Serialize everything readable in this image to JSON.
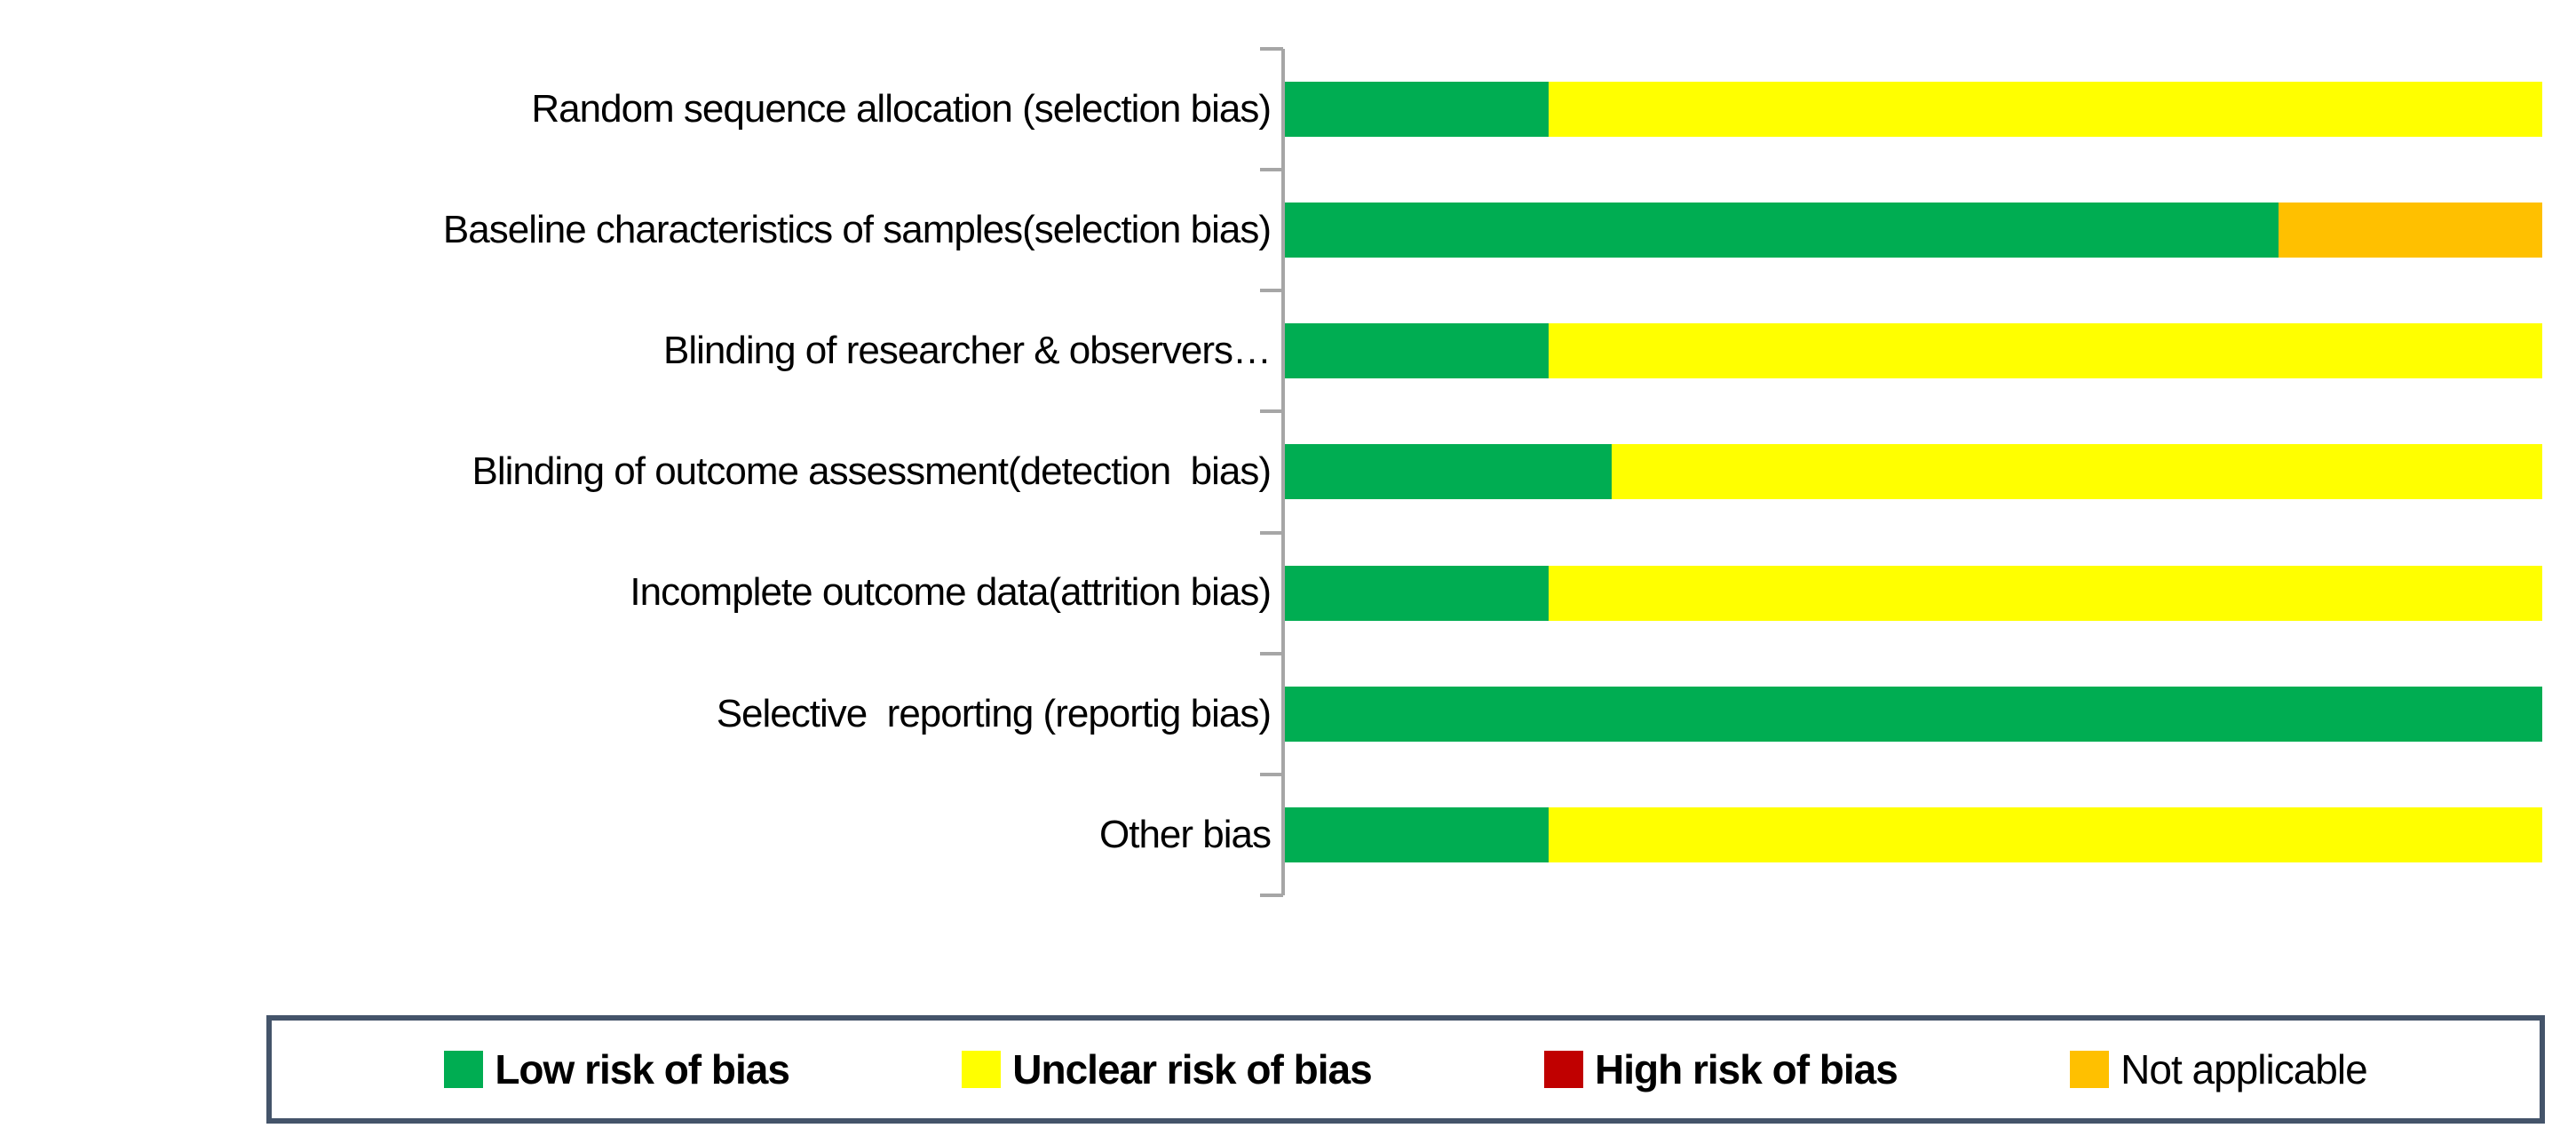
{
  "chart_data": {
    "type": "bar",
    "orientation": "horizontal",
    "stacked": true,
    "unit": "percent_of_studies",
    "title": "",
    "xlabel": "",
    "ylabel": "",
    "xlim": [
      0,
      100
    ],
    "grid": false,
    "legend_position": "bottom",
    "categories": [
      "Random sequence allocation (selection bias)",
      "Baseline characteristics of samples(selection bias)",
      "Blinding of researcher & observers…",
      "Blinding of outcome assessment(detection  bias)",
      "Incomplete outcome data(attrition bias)",
      "Selective  reporting (reportig bias)",
      "Other bias"
    ],
    "series": [
      {
        "name": "Low risk of bias",
        "color": "#00AD52",
        "values": [
          21,
          79,
          21,
          26,
          21,
          100,
          21
        ]
      },
      {
        "name": "Unclear risk of bias",
        "color": "#FFFF00",
        "values": [
          79,
          0,
          79,
          74,
          79,
          0,
          79
        ]
      },
      {
        "name": "High risk of bias",
        "color": "#C00000",
        "values": [
          0,
          0,
          0,
          0,
          0,
          0,
          0
        ]
      },
      {
        "name": "Not applicable",
        "color": "#FFC000",
        "values": [
          0,
          21,
          0,
          0,
          0,
          0,
          0
        ]
      }
    ]
  },
  "legend": {
    "border_color": "#44546A",
    "items": [
      {
        "label": "Low risk of bias",
        "color": "#00AD52",
        "bold": true
      },
      {
        "label": "Unclear risk of bias",
        "color": "#FFFF00",
        "bold": true
      },
      {
        "label": "High risk of bias",
        "color": "#C00000",
        "bold": true
      },
      {
        "label": "Not applicable",
        "color": "#FFC000",
        "bold": false
      }
    ]
  },
  "axis": {
    "color": "#A6A6A6",
    "tick_count": 8
  },
  "colors": {
    "background": "#FFFFFF",
    "text": "#000000"
  }
}
